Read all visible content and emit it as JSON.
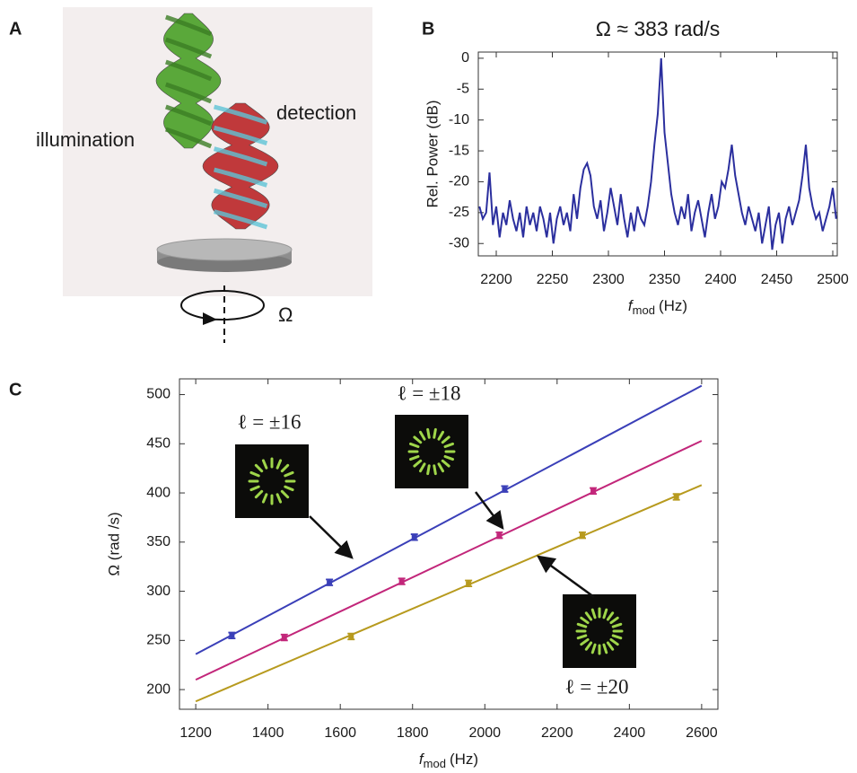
{
  "panel_labels": [
    "A",
    "B",
    "C"
  ],
  "illustration": {
    "labels": [
      "illumination",
      "detection",
      "Ω"
    ]
  },
  "chart_data": [
    {
      "type": "line",
      "title": "Ω ≈ 383 rad/s",
      "x_label": {
        "symbol": "f",
        "subscript": "mod",
        "unit": "(Hz)"
      },
      "y_label": "Rel. Power (dB)",
      "xlim": [
        2184,
        2504
      ],
      "ylim": [
        -32,
        1
      ],
      "xticks": [
        2200,
        2250,
        2300,
        2350,
        2400,
        2450,
        2500
      ],
      "yticks": [
        0,
        -5,
        -10,
        -15,
        -20,
        -25,
        -30
      ],
      "x": [
        2185,
        2188,
        2191,
        2194,
        2197,
        2200,
        2203,
        2206,
        2209,
        2212,
        2215,
        2218,
        2221,
        2224,
        2227,
        2230,
        2233,
        2236,
        2239,
        2242,
        2245,
        2248,
        2251,
        2254,
        2257,
        2260,
        2263,
        2266,
        2269,
        2272,
        2275,
        2278,
        2281,
        2284,
        2287,
        2290,
        2293,
        2296,
        2299,
        2302,
        2305,
        2308,
        2311,
        2314,
        2317,
        2320,
        2323,
        2326,
        2329,
        2332,
        2335,
        2338,
        2341,
        2344,
        2347,
        2350,
        2353,
        2356,
        2359,
        2362,
        2365,
        2368,
        2371,
        2374,
        2377,
        2380,
        2383,
        2386,
        2389,
        2392,
        2395,
        2398,
        2401,
        2404,
        2407,
        2410,
        2413,
        2416,
        2419,
        2422,
        2425,
        2428,
        2431,
        2434,
        2437,
        2440,
        2443,
        2446,
        2449,
        2452,
        2455,
        2458,
        2461,
        2464,
        2467,
        2470,
        2473,
        2476,
        2479,
        2482,
        2485,
        2488,
        2491,
        2494,
        2497,
        2500,
        2503
      ],
      "series": [
        {
          "color": "#2b2f9e",
          "values": [
            -24,
            -26,
            -25,
            -18.5,
            -27,
            -24,
            -29,
            -25,
            -27,
            -23,
            -26,
            -28,
            -25,
            -29,
            -24,
            -27,
            -25,
            -28,
            -24,
            -26,
            -29,
            -25,
            -30,
            -26,
            -24,
            -27,
            -25,
            -28,
            -22,
            -26,
            -21,
            -18,
            -17,
            -19,
            -24,
            -26,
            -23,
            -28,
            -25,
            -21,
            -24,
            -27,
            -22,
            -26,
            -29,
            -25,
            -28,
            -24,
            -26,
            -27,
            -24,
            -20,
            -14,
            -9,
            0,
            -12,
            -17,
            -22,
            -25,
            -27,
            -24,
            -26,
            -22,
            -28,
            -25,
            -23,
            -26,
            -29,
            -25,
            -22,
            -26,
            -24,
            -20,
            -21,
            -18,
            -14,
            -19,
            -22,
            -25,
            -27,
            -24,
            -26,
            -28,
            -25,
            -30,
            -27,
            -24,
            -31,
            -27,
            -25,
            -30,
            -26,
            -24,
            -27,
            -25,
            -23,
            -19,
            -14,
            -21,
            -24,
            -26,
            -25,
            -28,
            -26,
            -24,
            -21,
            -26
          ]
        }
      ]
    },
    {
      "type": "scatter",
      "x_label": {
        "symbol": "f",
        "subscript": "mod",
        "unit": "(Hz)"
      },
      "y_label": "Ω (rad /s)",
      "xlim": [
        1155,
        2645
      ],
      "ylim": [
        180,
        516
      ],
      "xticks": [
        1200,
        1400,
        1600,
        1800,
        2000,
        2200,
        2400,
        2600
      ],
      "yticks": [
        200,
        250,
        300,
        350,
        400,
        450,
        500
      ],
      "series": [
        {
          "name": "ℓ = ±16",
          "color": "#3a3fb8",
          "x": [
            1300,
            1570,
            1805,
            2055
          ],
          "values": [
            255,
            309,
            355,
            404
          ],
          "errors": [
            3,
            3,
            3,
            3
          ],
          "fit": {
            "x": [
              1200,
              2600
            ],
            "y": [
              236,
              509
            ]
          }
        },
        {
          "name": "ℓ = ±18",
          "color": "#c2267a",
          "x": [
            1445,
            1770,
            2040,
            2300
          ],
          "values": [
            253,
            310,
            357,
            402
          ],
          "errors": [
            3,
            3,
            3,
            3
          ],
          "fit": {
            "x": [
              1200,
              2600
            ],
            "y": [
              210,
              453
            ]
          }
        },
        {
          "name": "ℓ = ±20",
          "color": "#b79a1e",
          "x": [
            1630,
            1955,
            2270,
            2530
          ],
          "values": [
            254,
            308,
            357,
            396
          ],
          "errors": [
            3,
            3,
            3,
            3
          ],
          "fit": {
            "x": [
              1200,
              2600
            ],
            "y": [
              188,
              408
            ]
          }
        }
      ]
    }
  ]
}
